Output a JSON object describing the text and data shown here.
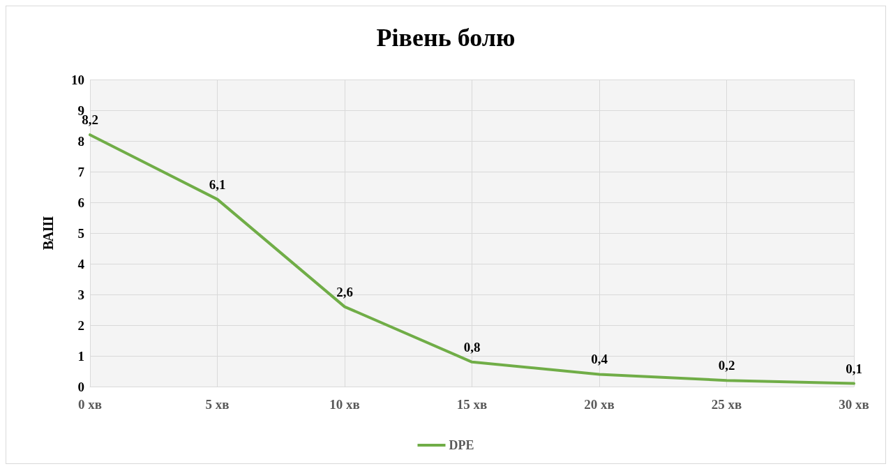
{
  "chart_data": {
    "type": "line",
    "title": "Рівень болю",
    "ylabel": "ВАШ",
    "categories": [
      "0 хв",
      "5 хв",
      "10 хв",
      "15 хв",
      "20 хв",
      "25 хв",
      "30 хв"
    ],
    "series": [
      {
        "name": "DPE",
        "color": "#70ad47",
        "values": [
          8.2,
          6.1,
          2.6,
          0.8,
          0.4,
          0.2,
          0.1
        ],
        "value_labels": [
          "8,2",
          "6,1",
          "2,6",
          "0,8",
          "0,4",
          "0,2",
          "0,1"
        ]
      }
    ],
    "ylim": [
      0,
      10
    ],
    "yticks": [
      0,
      1,
      2,
      3,
      4,
      5,
      6,
      7,
      8,
      9,
      10
    ],
    "grid": true,
    "legend": "bottom",
    "marker": "none",
    "line_style": "solid"
  }
}
